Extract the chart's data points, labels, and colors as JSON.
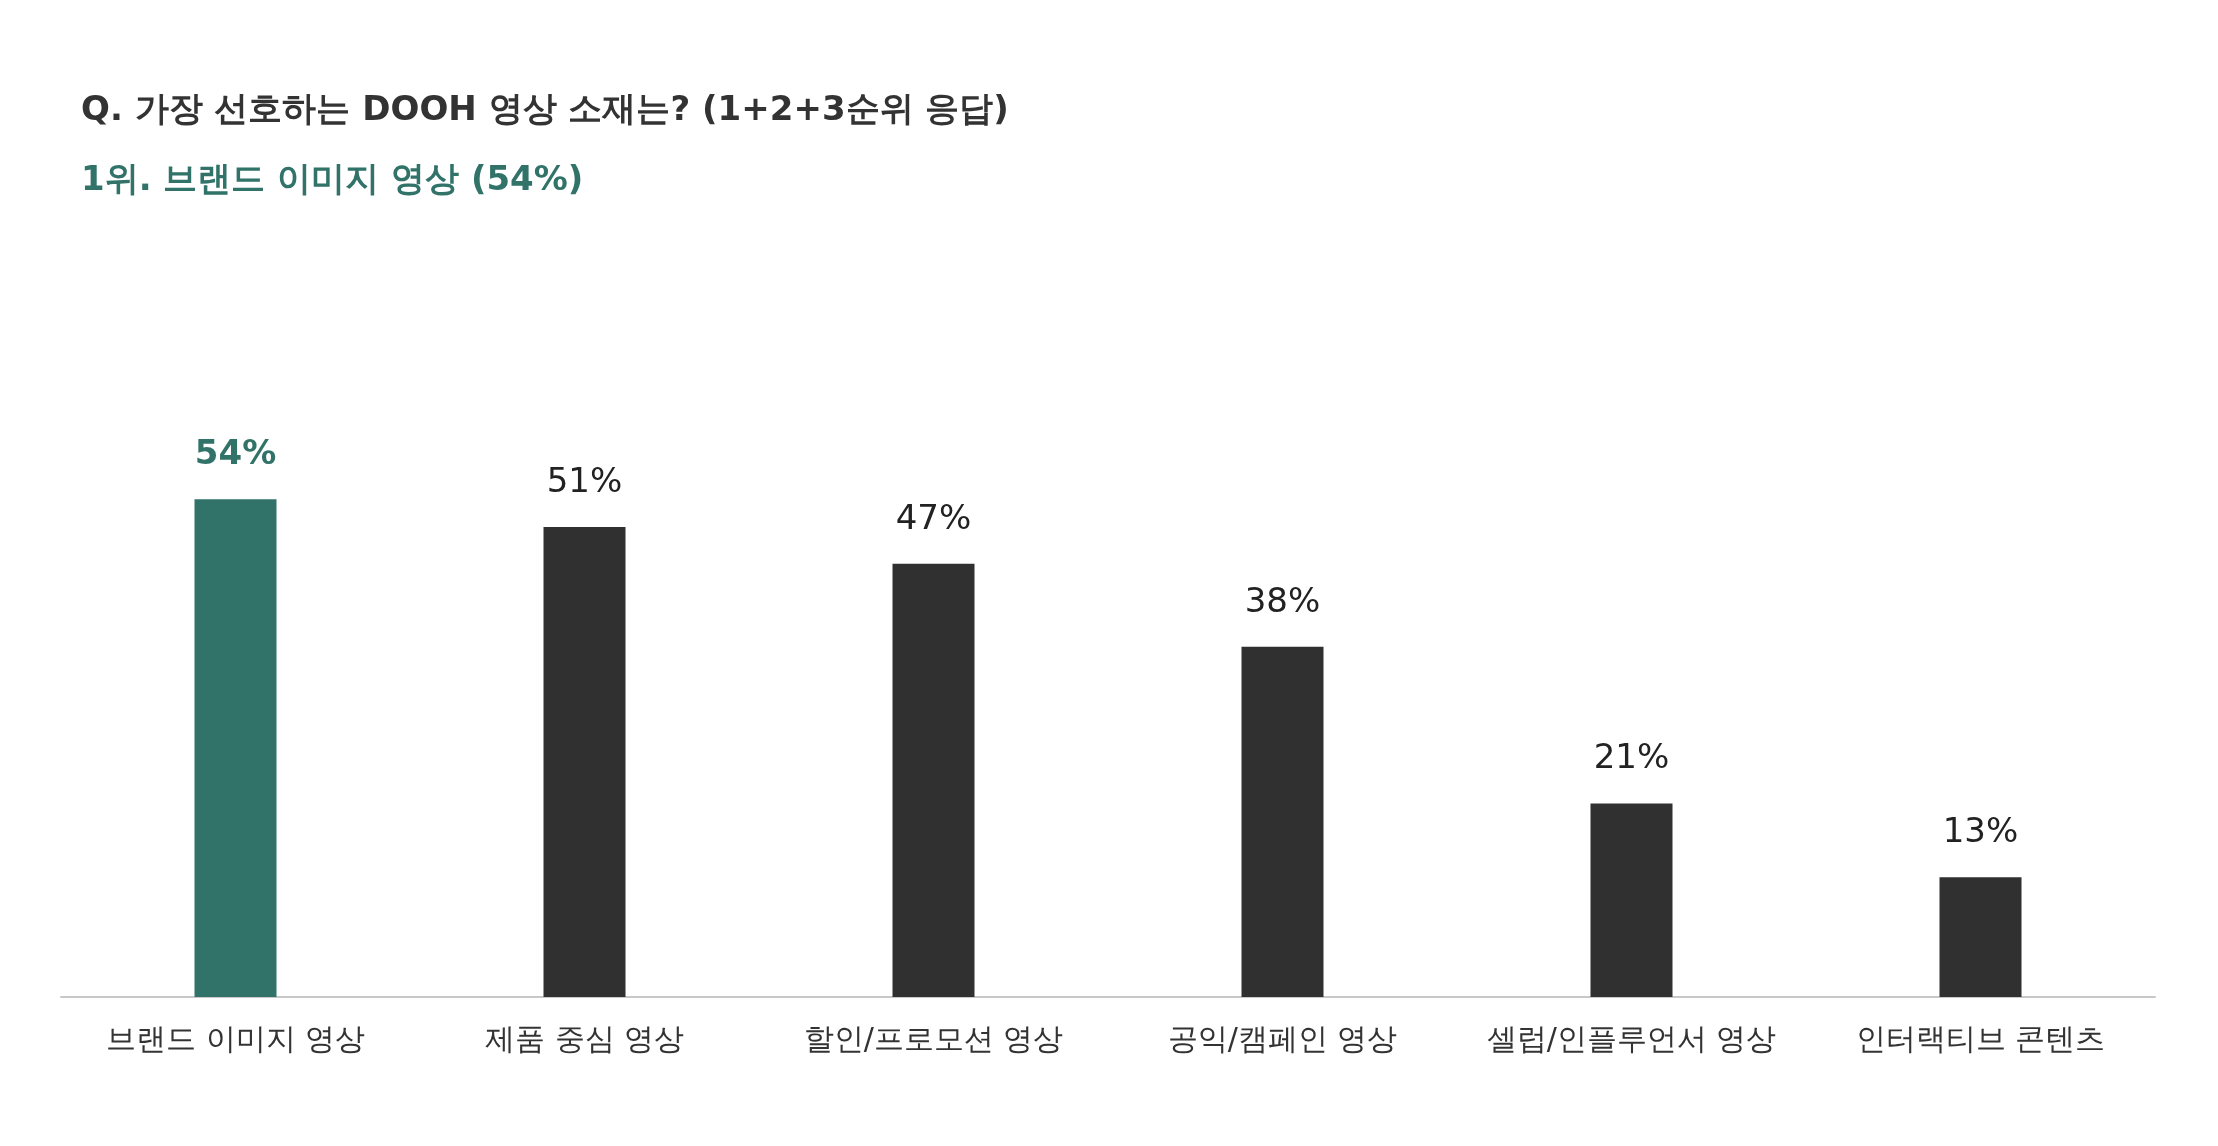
{
  "chart_data": {
    "type": "bar",
    "title": "Q. 가장 선호하는 DOOH 영상 소재는? (1+2+3순위 응답)",
    "subtitle": "1위. 브랜드 이미지 영상 (54%)",
    "categories": [
      "브랜드 이미지 영상",
      "제품 중심 영상",
      "할인/프로모션 영상",
      "공익/캠페인 영상",
      "셀럽/인플루언서 영상",
      "인터랙티브 콘텐츠"
    ],
    "values": [
      54,
      51,
      47,
      38,
      21,
      13
    ],
    "value_labels": [
      "54%",
      "51%",
      "47%",
      "38%",
      "21%",
      "13%"
    ],
    "colors": [
      "#317369",
      "#303030",
      "#303030",
      "#303030",
      "#303030",
      "#303030"
    ]
  }
}
